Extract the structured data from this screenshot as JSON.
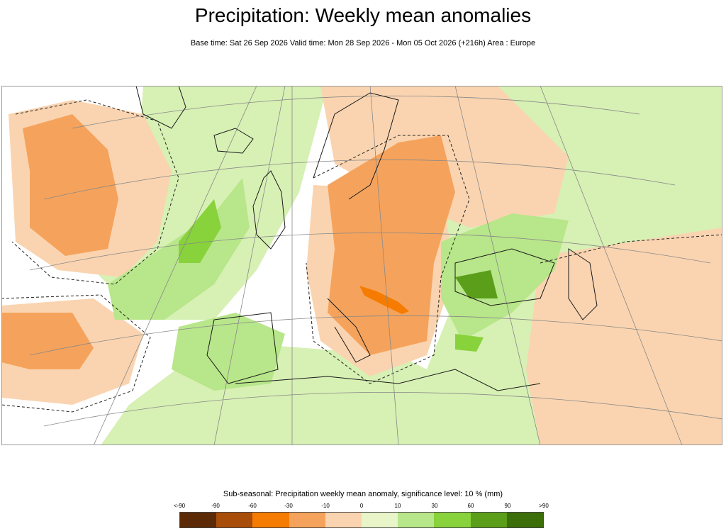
{
  "title": "Precipitation: Weekly mean anomalies",
  "subtitle": "Base time: Sat 26 Sep 2026 Valid time: Mon 28 Sep 2026 - Mon 05 Oct 2026 (+216h) Area : Europe",
  "legend": {
    "title": "Sub-seasonal: Precipitation weekly mean anomaly, significance level: 10 % (mm)",
    "ticks": [
      "<-90",
      "-90",
      "-60",
      "-30",
      "-10",
      "0",
      "10",
      "30",
      "60",
      "90",
      ">90"
    ],
    "colors": [
      "#5c2a06",
      "#a84d0a",
      "#f57c00",
      "#f5a35c",
      "#fad4b0",
      "#e8f5c8",
      "#b8e68a",
      "#88d23c",
      "#5a9e1a",
      "#3c6e0a"
    ]
  },
  "map": {
    "region": "Europe",
    "palette": {
      "sea": "#ffffff",
      "land_neutral": "#fad4b0",
      "wet_light": "#d7f0b4",
      "wet_mid": "#b8e68a",
      "wet_strong": "#88d23c",
      "wet_dark": "#5a9e1a",
      "dry_light": "#fad4b0",
      "dry_mid": "#f5a35c",
      "dry_strong": "#f57c00",
      "dry_dark": "#a84d0a",
      "coast": "#1a1a1a",
      "grid": "#888888"
    }
  }
}
